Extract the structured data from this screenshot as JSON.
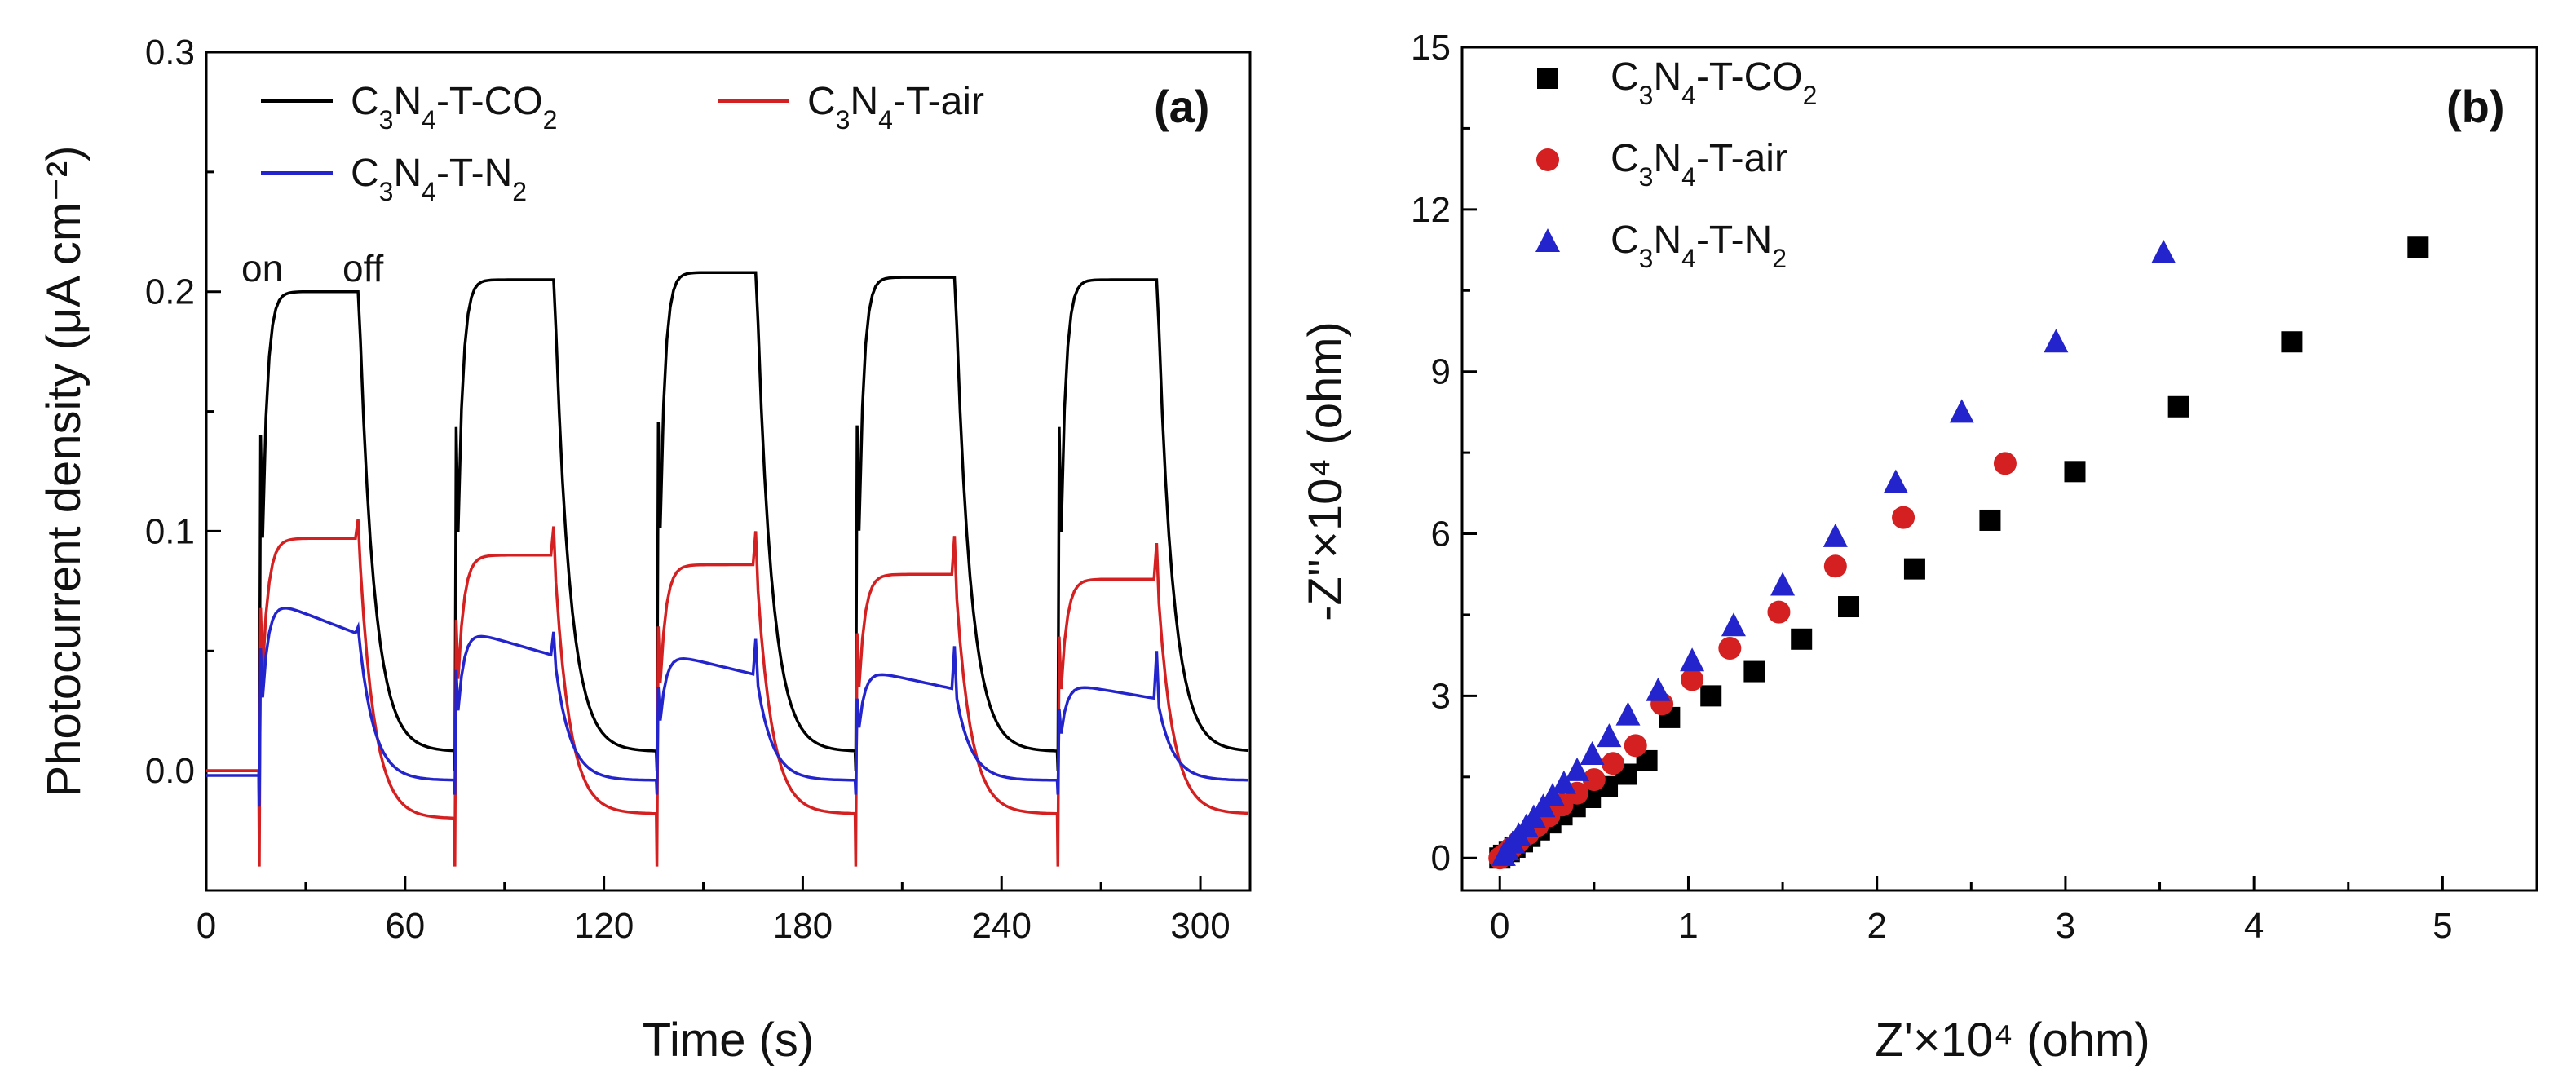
{
  "chart_data": [
    {
      "type": "line",
      "panel_label": "(a)",
      "xlabel": "Time (s)",
      "ylabel": "Photocurrent density (μA cm⁻²)",
      "xlim": [
        0,
        315
      ],
      "ylim": [
        -0.05,
        0.3
      ],
      "xticks": [
        0,
        60,
        120,
        180,
        240,
        300
      ],
      "yticks": [
        0.0,
        0.1,
        0.2,
        0.3
      ],
      "ytick_labels": [
        "0.0",
        "0.1",
        "0.2",
        "0.3"
      ],
      "annotations": {
        "on": "on",
        "off": "off"
      },
      "cycles": [
        {
          "on": 16,
          "off": 46
        },
        {
          "on": 75,
          "off": 105
        },
        {
          "on": 136,
          "off": 166
        },
        {
          "on": 196,
          "off": 226
        },
        {
          "on": 257,
          "off": 287
        }
      ],
      "series": [
        {
          "name": "C3N4-T-CO2",
          "legend_main": "C",
          "legend_sub1": "3",
          "legend_mid": "N",
          "legend_sub2": "4",
          "legend_tail": "-T-CO",
          "legend_sub3": "2",
          "color": "#000000",
          "baseline_start": 0.0,
          "plateaus": [
            0.2,
            0.205,
            0.208,
            0.206,
            0.205
          ],
          "dark_end": [
            0.008,
            0.008,
            0.008,
            0.008,
            0.008
          ],
          "spike_down": [
            0,
            0,
            0,
            0,
            0
          ],
          "spike_up": [
            0,
            0,
            0,
            0,
            0
          ]
        },
        {
          "name": "C3N4-T-air",
          "legend_main": "C",
          "legend_sub1": "3",
          "legend_mid": "N",
          "legend_sub2": "4",
          "legend_tail": "-T-air",
          "legend_sub3": "",
          "color": "#d42020",
          "baseline_start": 0.0,
          "plateaus": [
            0.097,
            0.09,
            0.086,
            0.082,
            0.08
          ],
          "dark_end": [
            -0.02,
            -0.018,
            -0.018,
            -0.018,
            -0.018
          ],
          "spike_down": [
            -0.04,
            -0.04,
            -0.04,
            -0.04,
            -0.04
          ],
          "spike_up": [
            0.105,
            0.102,
            0.1,
            0.098,
            0.095
          ]
        },
        {
          "name": "C3N4-T-N2",
          "legend_main": "C",
          "legend_sub1": "3",
          "legend_mid": "N",
          "legend_sub2": "4",
          "legend_tail": "-T-N",
          "legend_sub3": "2",
          "color": "#2424cc",
          "baseline_start": -0.002,
          "plateaus": [
            0.073,
            0.06,
            0.05,
            0.043,
            0.037
          ],
          "plateau_end": [
            0.057,
            0.048,
            0.04,
            0.034,
            0.03
          ],
          "dark_end": [
            -0.004,
            -0.004,
            -0.004,
            -0.004,
            -0.004
          ],
          "spike_down": [
            -0.015,
            -0.01,
            -0.01,
            -0.01,
            -0.01
          ],
          "spike_up": [
            0.06,
            0.058,
            0.055,
            0.052,
            0.05
          ]
        }
      ]
    },
    {
      "type": "scatter",
      "panel_label": "(b)",
      "xlabel": "Z'×10⁴ (ohm)",
      "ylabel": "-Z''×10⁴ (ohm)",
      "xlim": [
        -0.2,
        5.5
      ],
      "ylim": [
        -0.6,
        15
      ],
      "xticks": [
        0,
        1,
        2,
        3,
        4,
        5
      ],
      "yticks": [
        0,
        3,
        6,
        9,
        12,
        15
      ],
      "series": [
        {
          "name": "C3N4-T-CO2",
          "legend_tail": "-T-CO",
          "legend_sub3": "2",
          "marker": "square",
          "color": "#000000",
          "x": [
            0.0,
            0.02,
            0.05,
            0.08,
            0.12,
            0.16,
            0.21,
            0.27,
            0.33,
            0.4,
            0.48,
            0.57,
            0.67,
            0.78,
            0.9,
            1.12,
            1.35,
            1.6,
            1.85,
            2.2,
            2.6,
            3.05,
            3.6,
            4.2,
            4.87
          ],
          "y": [
            0.0,
            0.05,
            0.12,
            0.2,
            0.3,
            0.4,
            0.52,
            0.65,
            0.8,
            0.95,
            1.12,
            1.32,
            1.55,
            1.8,
            2.6,
            3.0,
            3.45,
            4.05,
            4.65,
            5.35,
            6.25,
            7.15,
            8.35,
            9.55,
            11.3
          ]
        },
        {
          "name": "C3N4-T-air",
          "legend_tail": "-T-air",
          "legend_sub3": "",
          "marker": "circle",
          "color": "#d42020",
          "x": [
            0.0,
            0.03,
            0.06,
            0.1,
            0.15,
            0.2,
            0.26,
            0.33,
            0.41,
            0.5,
            0.6,
            0.72,
            0.86,
            1.02,
            1.22,
            1.48,
            1.78,
            2.14,
            2.68
          ],
          "y": [
            0.0,
            0.08,
            0.18,
            0.3,
            0.45,
            0.6,
            0.78,
            0.98,
            1.2,
            1.45,
            1.75,
            2.08,
            2.85,
            3.3,
            3.88,
            4.55,
            5.4,
            6.3,
            7.3
          ]
        },
        {
          "name": "C3N4-T-N2",
          "legend_tail": "-T-N",
          "legend_sub3": "2",
          "marker": "triangle",
          "color": "#2424cc",
          "x": [
            0.02,
            0.04,
            0.07,
            0.1,
            0.14,
            0.18,
            0.23,
            0.28,
            0.34,
            0.41,
            0.49,
            0.58,
            0.68,
            0.84,
            1.02,
            1.24,
            1.5,
            1.78,
            2.1,
            2.45,
            2.95,
            3.52
          ],
          "y": [
            0.05,
            0.15,
            0.28,
            0.42,
            0.58,
            0.75,
            0.95,
            1.15,
            1.38,
            1.62,
            1.92,
            2.25,
            2.65,
            3.1,
            3.65,
            4.3,
            5.05,
            5.95,
            6.95,
            8.25,
            9.55,
            11.2
          ]
        }
      ]
    }
  ]
}
